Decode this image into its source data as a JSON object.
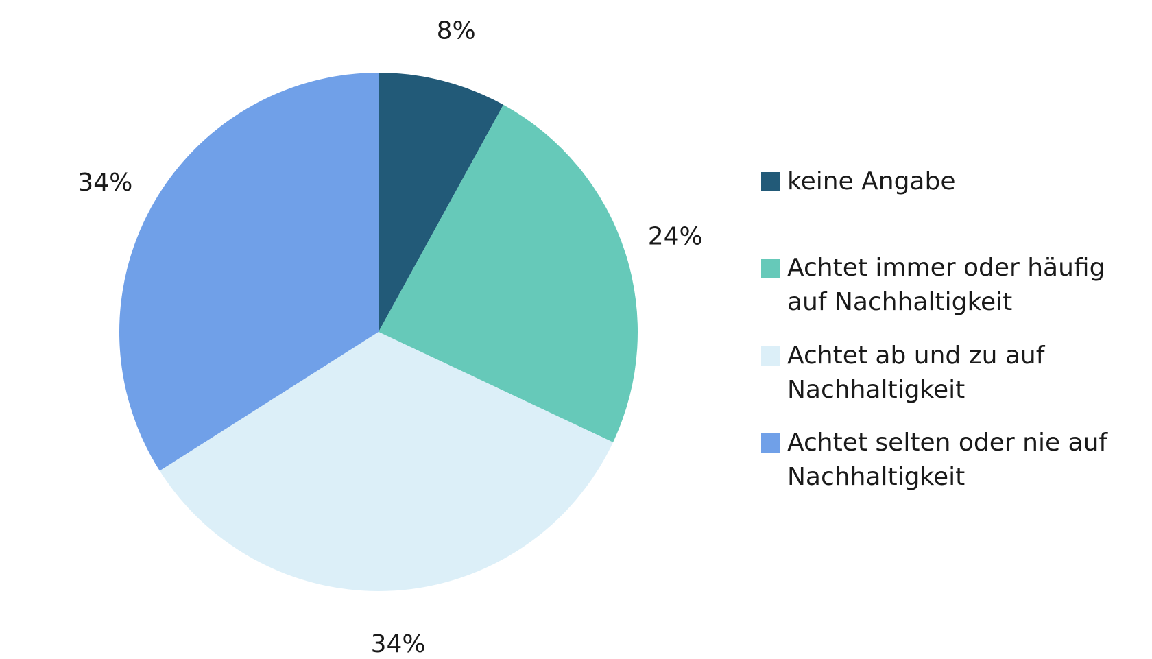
{
  "chart_data": {
    "type": "pie",
    "categories": [
      "keine Angabe",
      "Achtet immer oder häufig auf Nachhaltigkeit",
      "Achtet ab und zu auf Nachhaltigkeit",
      "Achtet selten oder nie auf Nachhaltigkeit"
    ],
    "values": [
      8,
      24,
      34,
      34
    ],
    "labels": [
      "8%",
      "24%",
      "34%",
      "34%"
    ],
    "colors": [
      "#225a78",
      "#66c9b9",
      "#dceff8",
      "#70a0e8"
    ],
    "legend_position": "right",
    "start_angle": "top",
    "direction": "clockwise"
  }
}
